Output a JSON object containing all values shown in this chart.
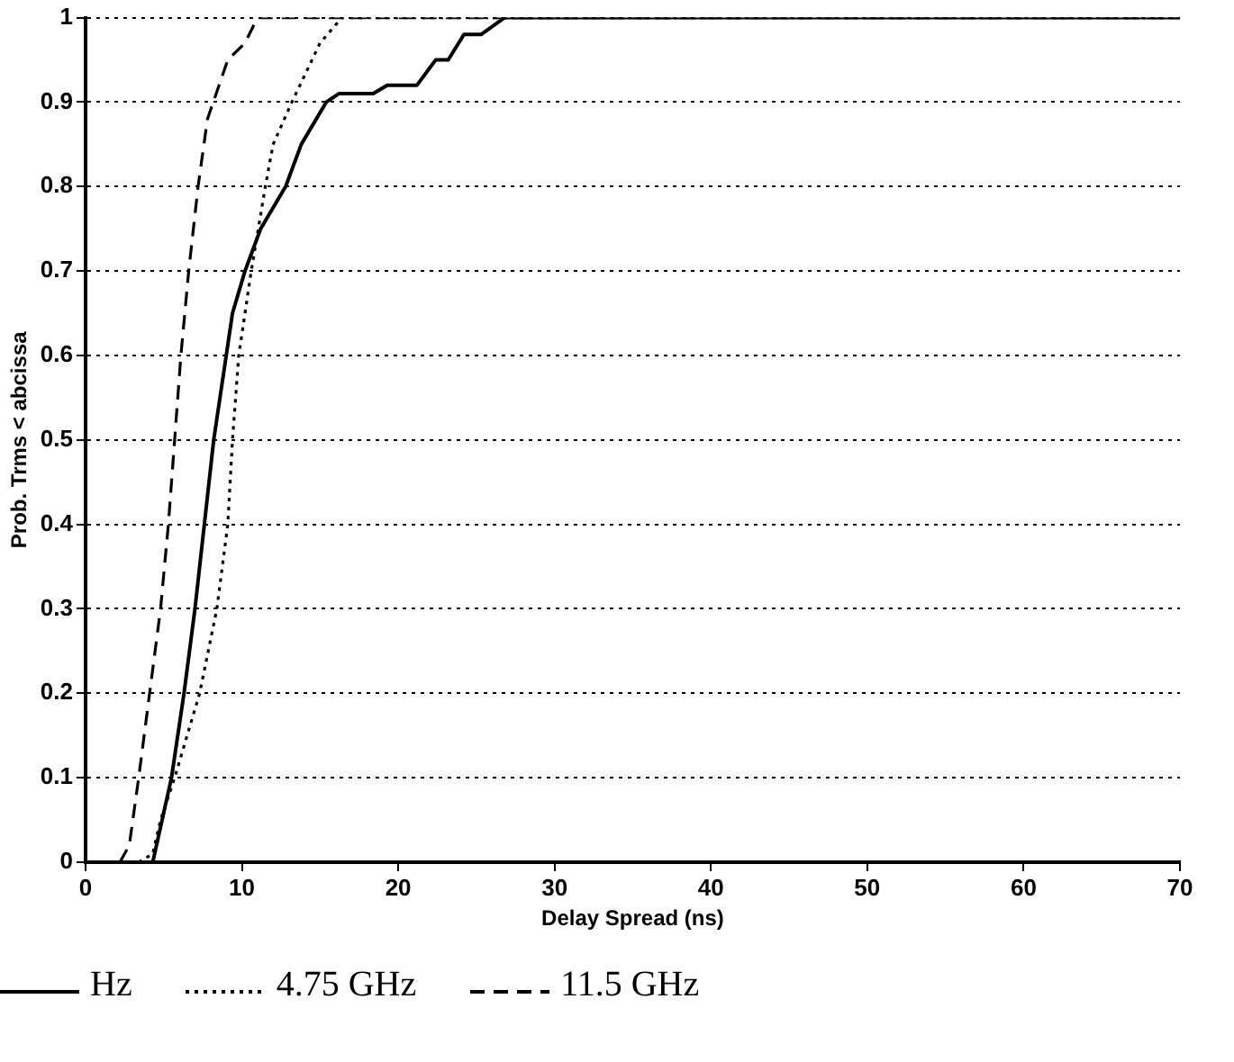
{
  "chart_data": {
    "type": "line",
    "xlabel": "Delay Spread (ns)",
    "ylabel": "Prob. Trms < abcissa",
    "xlim": [
      0,
      70
    ],
    "xticks": [
      0,
      10,
      20,
      30,
      40,
      50,
      60,
      70
    ],
    "ylim": [
      0,
      1
    ],
    "yticks": [
      0,
      0.1,
      0.2,
      0.3,
      0.4,
      0.5,
      0.6,
      0.7,
      0.8,
      0.9,
      1
    ],
    "grid": "y",
    "legend": "bottom",
    "marker": "none",
    "series": [
      {
        "name": "Hz",
        "color": "#000000",
        "line_style": "solid",
        "x": [
          4.3,
          5.5,
          6.3,
          7.0,
          8.2,
          9.0,
          9.4,
          10.2,
          11.2,
          12.8,
          13.8,
          15.4,
          16.2,
          18.4,
          19.3,
          21.2,
          22.4,
          23.2,
          24.2,
          25.3,
          26.8,
          70
        ],
        "values": [
          0,
          0.1,
          0.2,
          0.3,
          0.5,
          0.6,
          0.65,
          0.7,
          0.75,
          0.8,
          0.85,
          0.9,
          0.91,
          0.91,
          0.92,
          0.92,
          0.95,
          0.95,
          0.98,
          0.98,
          1,
          1
        ]
      },
      {
        "name": "4.75 GHz",
        "color": "#000000",
        "line_style": "dotted",
        "x": [
          3.4,
          4.3,
          4.8,
          5.7,
          7.3,
          8.4,
          9.1,
          9.4,
          9.8,
          10.6,
          11.5,
          12.0,
          13.2,
          15.0,
          16.4,
          70
        ],
        "values": [
          0,
          0.01,
          0.05,
          0.1,
          0.2,
          0.3,
          0.4,
          0.5,
          0.6,
          0.7,
          0.8,
          0.85,
          0.9,
          0.97,
          1,
          1
        ]
      },
      {
        "name": "11.5 GHz",
        "color": "#000000",
        "line_style": "dashed",
        "x": [
          2.2,
          2.8,
          3.4,
          4.1,
          4.8,
          5.3,
          5.7,
          6.1,
          6.6,
          7.2,
          7.8,
          9.1,
          10.2,
          11.0,
          70
        ],
        "values": [
          0,
          0.02,
          0.1,
          0.2,
          0.3,
          0.4,
          0.5,
          0.6,
          0.7,
          0.8,
          0.88,
          0.95,
          0.97,
          1,
          1
        ]
      }
    ]
  }
}
